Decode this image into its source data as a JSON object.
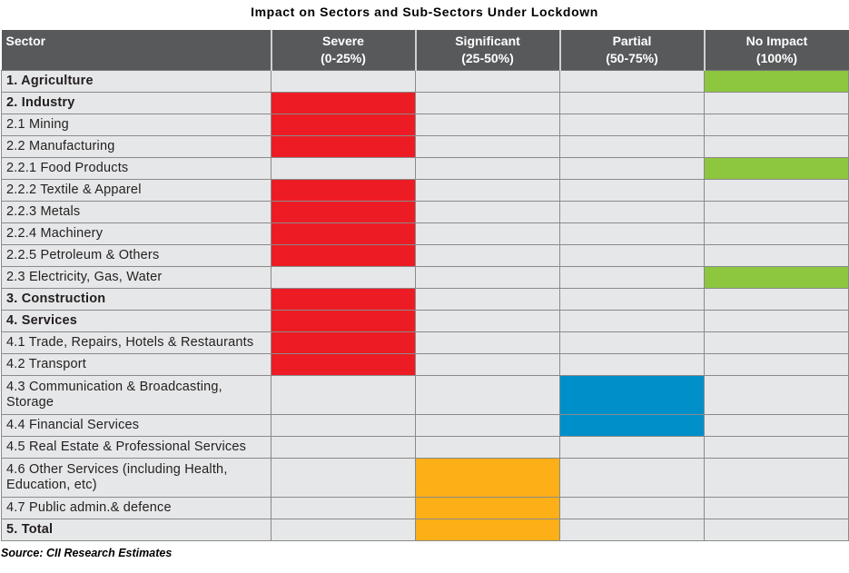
{
  "title": "Impact on Sectors and Sub-Sectors Under Lockdown",
  "colors": {
    "severe": "#ed1c24",
    "significant": "#fcaf17",
    "partial": "#0090c9",
    "no_impact": "#8dc63f",
    "header_bg": "#58595b",
    "cell_bg": "#e6e7e8"
  },
  "columns": [
    {
      "label": "Sector",
      "range": ""
    },
    {
      "label": "Severe",
      "range": "(0-25%)"
    },
    {
      "label": "Significant",
      "range": "(25-50%)"
    },
    {
      "label": "Partial",
      "range": "(50-75%)"
    },
    {
      "label": "No Impact",
      "range": "(100%)"
    }
  ],
  "rows": [
    {
      "sector": "1.  Agriculture",
      "bold": true,
      "impact": "no_impact"
    },
    {
      "sector": "2.  Industry",
      "bold": true,
      "impact": "severe"
    },
    {
      "sector": "2.1 Mining",
      "bold": false,
      "impact": "severe"
    },
    {
      "sector": "2.2 Manufacturing",
      "bold": false,
      "impact": "severe"
    },
    {
      "sector": "2.2.1 Food Products",
      "bold": false,
      "impact": "no_impact"
    },
    {
      "sector": "2.2.2 Textile & Apparel",
      "bold": false,
      "impact": "severe"
    },
    {
      "sector": "2.2.3 Metals",
      "bold": false,
      "impact": "severe"
    },
    {
      "sector": "2.2.4 Machinery",
      "bold": false,
      "impact": "severe"
    },
    {
      "sector": "2.2.5 Petroleum & Others",
      "bold": false,
      "impact": "severe"
    },
    {
      "sector": "2.3 Electricity, Gas, Water",
      "bold": false,
      "impact": "no_impact"
    },
    {
      "sector": "3.  Construction",
      "bold": true,
      "impact": "severe"
    },
    {
      "sector": "4.  Services",
      "bold": true,
      "impact": "severe"
    },
    {
      "sector": "4.1 Trade, Repairs, Hotels & Restaurants",
      "bold": false,
      "impact": "severe"
    },
    {
      "sector": "4.2 Transport",
      "bold": false,
      "impact": "severe"
    },
    {
      "sector": "4.3 Communication & Broadcasting, Storage",
      "bold": false,
      "impact": "partial"
    },
    {
      "sector": "4.4 Financial Services",
      "bold": false,
      "impact": "partial"
    },
    {
      "sector": "4.5 Real Estate & Professional Services",
      "bold": false,
      "impact": "none_marked"
    },
    {
      "sector": "4.6 Other Services (including Health, Education, etc)",
      "bold": false,
      "impact": "significant"
    },
    {
      "sector": "4.7 Public admin.& defence",
      "bold": false,
      "impact": "significant"
    },
    {
      "sector": "5.  Total",
      "bold": true,
      "impact": "significant"
    }
  ],
  "source": "Source: CII Research Estimates"
}
